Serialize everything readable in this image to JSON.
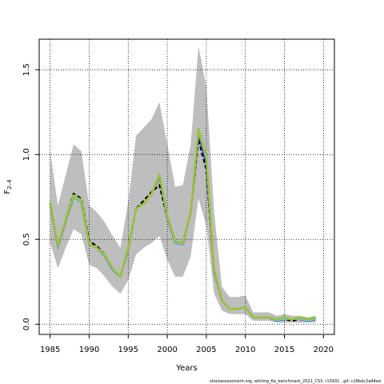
{
  "chart_data": {
    "type": "line",
    "xlabel": "Years",
    "ylabel": "F",
    "ylabel_sub": "2–4",
    "xlim": [
      1983.6,
      2021.4
    ],
    "ylim": [
      -0.06,
      1.68
    ],
    "x_ticks": [
      1985,
      1990,
      1995,
      2000,
      2005,
      2010,
      2015,
      2020
    ],
    "y_ticks": [
      0.0,
      0.5,
      1.0,
      1.5
    ],
    "y_tick_labels": [
      "0.0",
      "0.5",
      "1.0",
      "1.5"
    ],
    "grid": true,
    "years": [
      1985,
      1986,
      1987,
      1988,
      1989,
      1990,
      1991,
      1992,
      1993,
      1994,
      1995,
      1996,
      1997,
      1998,
      1999,
      2000,
      2001,
      2002,
      2003,
      2004,
      2005,
      2006,
      2007,
      2008,
      2009,
      2010,
      2011,
      2012,
      2013,
      2014,
      2015,
      2016,
      2017,
      2018,
      2019
    ],
    "band": {
      "upper": [
        1.02,
        0.7,
        0.88,
        1.06,
        1.02,
        0.7,
        0.66,
        0.6,
        0.52,
        0.45,
        0.72,
        1.11,
        1.16,
        1.21,
        1.31,
        1.06,
        0.81,
        0.82,
        1.06,
        1.64,
        1.4,
        0.66,
        0.22,
        0.16,
        0.16,
        0.17,
        0.07,
        0.07,
        0.07,
        0.05,
        0.06,
        0.05,
        0.05,
        0.04,
        0.05
      ],
      "lower": [
        0.48,
        0.33,
        0.45,
        0.56,
        0.53,
        0.35,
        0.33,
        0.28,
        0.22,
        0.18,
        0.26,
        0.41,
        0.45,
        0.48,
        0.52,
        0.38,
        0.28,
        0.28,
        0.4,
        0.74,
        0.58,
        0.18,
        0.08,
        0.06,
        0.06,
        0.06,
        0.02,
        0.02,
        0.02,
        0.01,
        0.01,
        0.01,
        0.01,
        0.01,
        0.01
      ],
      "color": "#bebebe"
    },
    "series": [
      {
        "color": "#000000",
        "dash": "5,3",
        "width": 2.2,
        "values": [
          0.71,
          0.46,
          0.62,
          0.77,
          0.74,
          0.49,
          0.46,
          0.41,
          0.33,
          0.28,
          0.45,
          0.68,
          0.73,
          0.78,
          0.82,
          0.63,
          0.49,
          0.48,
          0.66,
          1.09,
          0.91,
          0.31,
          0.14,
          0.09,
          0.09,
          0.1,
          0.04,
          0.04,
          0.04,
          0.02,
          0.03,
          0.02,
          0.03,
          0.02,
          0.03
        ]
      },
      {
        "color": "#2b2bd1",
        "dash": "",
        "width": 2.2,
        "values": [
          0.71,
          0.45,
          0.61,
          0.75,
          0.72,
          0.47,
          0.45,
          0.4,
          0.32,
          0.28,
          0.44,
          0.68,
          0.71,
          0.77,
          0.87,
          0.63,
          0.48,
          0.47,
          0.66,
          1.12,
          0.95,
          0.31,
          0.14,
          0.09,
          0.09,
          0.1,
          0.04,
          0.04,
          0.04,
          0.02,
          0.03,
          0.03,
          0.03,
          0.02,
          0.03
        ]
      },
      {
        "color": "#3d8a3d",
        "dash": "",
        "width": 2.2,
        "values": [
          0.72,
          0.46,
          0.61,
          0.75,
          0.72,
          0.47,
          0.45,
          0.4,
          0.33,
          0.28,
          0.45,
          0.68,
          0.71,
          0.77,
          0.88,
          0.64,
          0.49,
          0.48,
          0.66,
          1.14,
          0.98,
          0.32,
          0.14,
          0.09,
          0.09,
          0.1,
          0.04,
          0.04,
          0.04,
          0.03,
          0.03,
          0.03,
          0.03,
          0.03,
          0.03
        ]
      },
      {
        "color": "#6fd0d0",
        "dash": "",
        "width": 1.6,
        "values": [
          0.71,
          0.45,
          0.61,
          0.75,
          0.72,
          0.47,
          0.45,
          0.4,
          0.32,
          0.28,
          0.44,
          0.68,
          0.71,
          0.77,
          0.88,
          0.63,
          0.48,
          0.47,
          0.66,
          1.13,
          0.97,
          0.31,
          0.14,
          0.09,
          0.09,
          0.1,
          0.04,
          0.04,
          0.04,
          0.02,
          0.03,
          0.03,
          0.03,
          0.02,
          0.03
        ]
      },
      {
        "color": "#9cc23a",
        "dash": "",
        "width": 2.6,
        "values": [
          0.72,
          0.46,
          0.62,
          0.76,
          0.73,
          0.47,
          0.45,
          0.41,
          0.33,
          0.28,
          0.45,
          0.68,
          0.71,
          0.77,
          0.88,
          0.64,
          0.49,
          0.48,
          0.66,
          1.15,
          0.99,
          0.32,
          0.14,
          0.09,
          0.09,
          0.1,
          0.04,
          0.04,
          0.04,
          0.03,
          0.04,
          0.03,
          0.04,
          0.03,
          0.04
        ]
      }
    ],
    "footer": "stockassessment.org, whiting_6a_benchmark_2021_CS3, r13931 , git: c28bdc2a44ad"
  }
}
